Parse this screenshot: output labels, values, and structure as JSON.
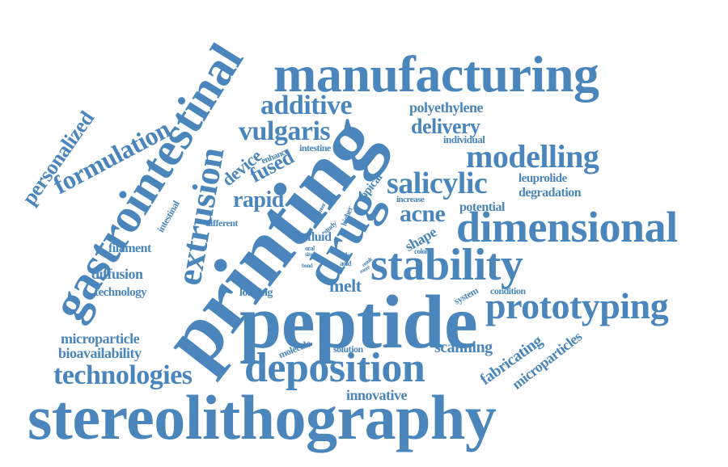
{
  "cloud": {
    "color": "#4a86bb",
    "words": [
      {
        "id": "stereolithography",
        "text": "stereolithography"
      },
      {
        "id": "printing",
        "text": "printing"
      },
      {
        "id": "peptide",
        "text": "peptide"
      },
      {
        "id": "manufacturing",
        "text": "manufacturing"
      },
      {
        "id": "gastrointestinal",
        "text": "gastrointestinal"
      },
      {
        "id": "dimensional",
        "text": "dimensional"
      },
      {
        "id": "stability",
        "text": "stability"
      },
      {
        "id": "prototyping",
        "text": "prototyping"
      },
      {
        "id": "deposition",
        "text": "deposition"
      },
      {
        "id": "drug",
        "text": "drug"
      },
      {
        "id": "extrusion",
        "text": "extrusion"
      },
      {
        "id": "modelling",
        "text": "modelling"
      },
      {
        "id": "salicylic",
        "text": "salicylic"
      },
      {
        "id": "technologies",
        "text": "technologies"
      },
      {
        "id": "formulation",
        "text": "formulation"
      },
      {
        "id": "additive",
        "text": "additive"
      },
      {
        "id": "vulgaris",
        "text": "vulgaris"
      },
      {
        "id": "delivery",
        "text": "delivery"
      },
      {
        "id": "personalized",
        "text": "personalized"
      },
      {
        "id": "acne",
        "text": "acne"
      },
      {
        "id": "rapid",
        "text": "rapid"
      },
      {
        "id": "fused",
        "text": "fused"
      },
      {
        "id": "device",
        "text": "device"
      },
      {
        "id": "polyethylene",
        "text": "polyethylene"
      },
      {
        "id": "innovative",
        "text": "innovative"
      },
      {
        "id": "scanning",
        "text": "scanning"
      },
      {
        "id": "fabricating",
        "text": "fabricating"
      },
      {
        "id": "microparticles",
        "text": "microparticles"
      },
      {
        "id": "microparticle",
        "text": "microparticle"
      },
      {
        "id": "bioavailability",
        "text": "bioavailability"
      },
      {
        "id": "diffusion",
        "text": "diffusion"
      },
      {
        "id": "filament",
        "text": "filament"
      },
      {
        "id": "technology",
        "text": "technology"
      },
      {
        "id": "melt",
        "text": "melt"
      },
      {
        "id": "shape",
        "text": "shape"
      },
      {
        "id": "potential",
        "text": "potential"
      },
      {
        "id": "degradation",
        "text": "degradation"
      },
      {
        "id": "leuprolide",
        "text": "leuprolide"
      },
      {
        "id": "individual",
        "text": "individual"
      },
      {
        "id": "fluid",
        "text": "fluid"
      },
      {
        "id": "topical",
        "text": "topical"
      },
      {
        "id": "loading",
        "text": "loading"
      },
      {
        "id": "molecule",
        "text": "molecule"
      },
      {
        "id": "solution",
        "text": "solution"
      },
      {
        "id": "system",
        "text": "system"
      },
      {
        "id": "condition",
        "text": "condition"
      },
      {
        "id": "intestine",
        "text": "intestine"
      },
      {
        "id": "enhance",
        "text": "enhance"
      },
      {
        "id": "intestinal",
        "text": "intestinal"
      },
      {
        "id": "different",
        "text": "different"
      },
      {
        "id": "increase",
        "text": "increase"
      },
      {
        "id": "colonic",
        "text": "colonic"
      },
      {
        "id": "higher",
        "text": "higher"
      },
      {
        "id": "study",
        "text": "study"
      },
      {
        "id": "most",
        "text": "most"
      },
      {
        "id": "oral",
        "text": "oral"
      },
      {
        "id": "size",
        "text": "size"
      },
      {
        "id": "bond",
        "text": "bond"
      },
      {
        "id": "fpla",
        "text": "fpla"
      },
      {
        "id": "acid",
        "text": "acid"
      },
      {
        "id": "result",
        "text": "result"
      },
      {
        "id": "more",
        "text": "more"
      }
    ]
  }
}
